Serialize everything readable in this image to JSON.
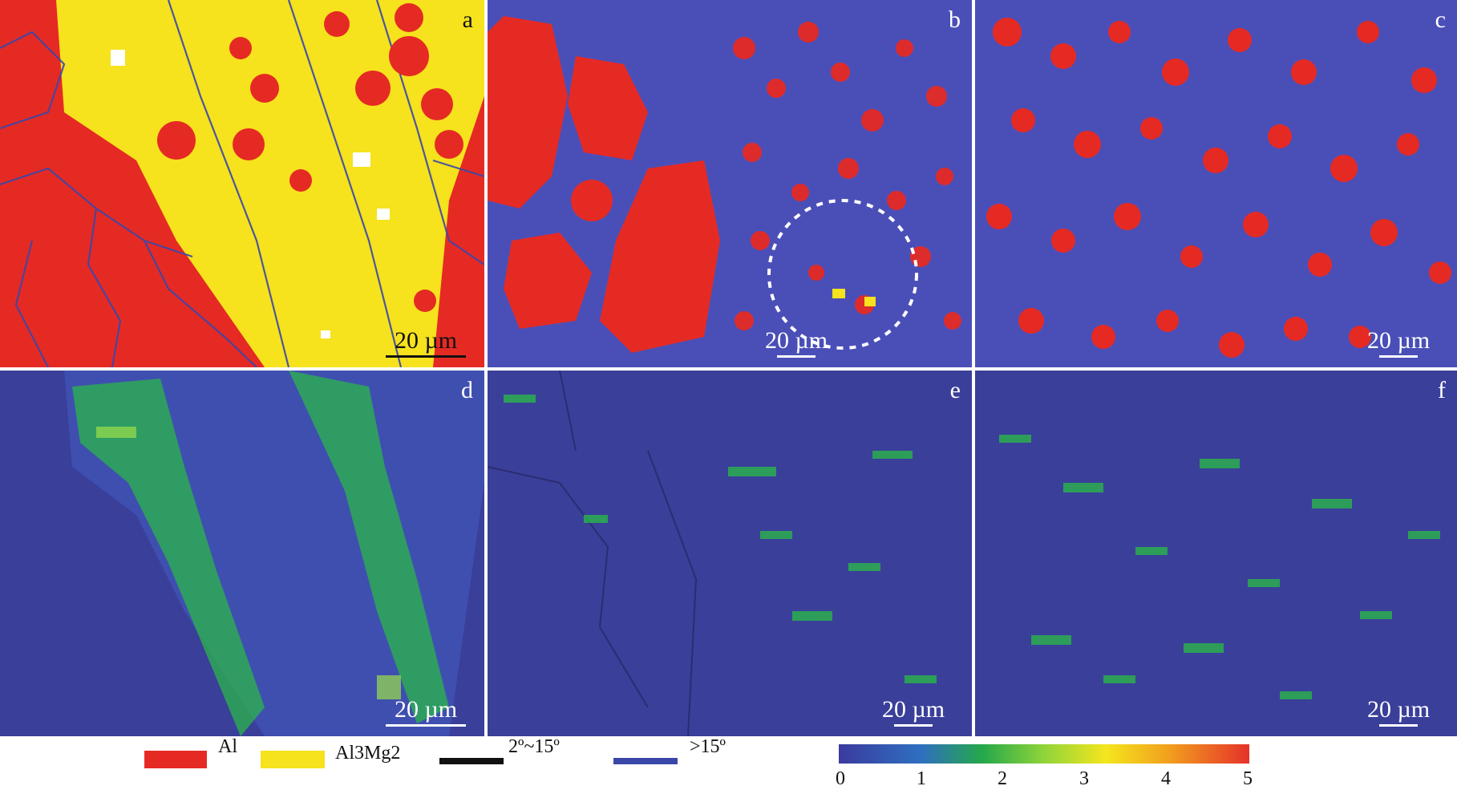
{
  "panels": [
    {
      "id": "a",
      "letter": "a",
      "scale_label": "20 µm"
    },
    {
      "id": "b",
      "letter": "b",
      "scale_label": "20 µm"
    },
    {
      "id": "c",
      "letter": "c",
      "scale_label": "20 µm"
    },
    {
      "id": "d",
      "letter": "d",
      "scale_label": "20 µm"
    },
    {
      "id": "e",
      "letter": "e",
      "scale_label": "20 µm"
    },
    {
      "id": "f",
      "letter": "f",
      "scale_label": "20 µm"
    }
  ],
  "legend": {
    "items": [
      {
        "label": "Al",
        "color": "#e52a24"
      },
      {
        "label": "Al3Mg2",
        "color": "#f6e21d"
      },
      {
        "label": "2º~15º",
        "color": "#111111"
      },
      {
        "label": ">15º",
        "color": "#3b47a8"
      }
    ],
    "colorbar": {
      "ticks": [
        "0",
        "1",
        "2",
        "3",
        "4",
        "5"
      ],
      "colors": [
        "#3b3b9e",
        "#2f6fc0",
        "#25a84a",
        "#8fd43a",
        "#f4e61e",
        "#f2a11e",
        "#e5322a"
      ]
    }
  },
  "colors": {
    "al_red": "#e52a24",
    "al3mg2_yellow": "#f6e21d",
    "boundary_blue": "#3b47a8",
    "kam_low": "#3a3f9a",
    "kam_mid": "#2bb54a"
  }
}
